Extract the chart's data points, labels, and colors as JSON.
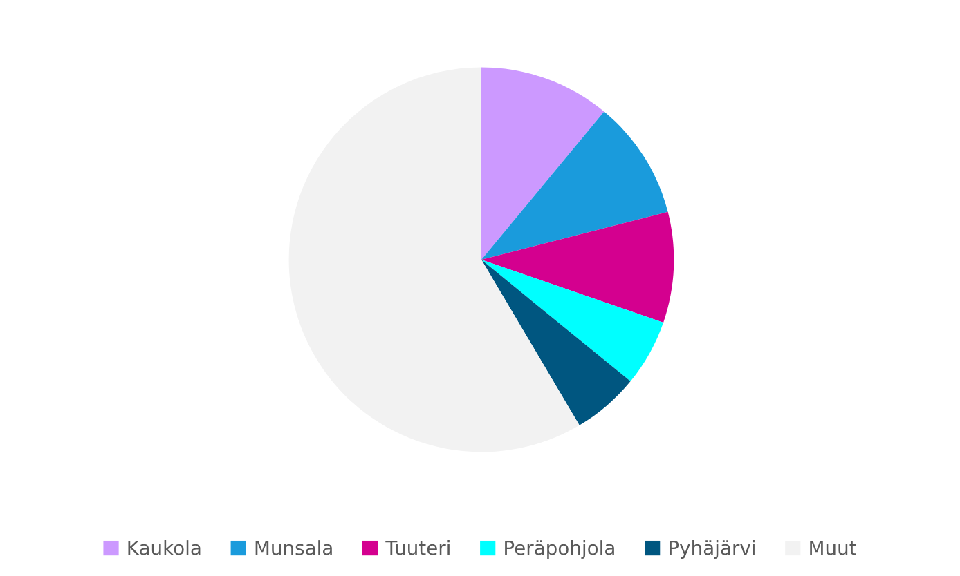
{
  "chart_data": {
    "type": "pie",
    "categories": [
      "Kaukola",
      "Munsala",
      "Tuuteri",
      "Peräpohjola",
      "Pyhäjärvi",
      "Muut"
    ],
    "values": [
      11,
      10,
      9.3,
      5.6,
      5.6,
      58.5
    ],
    "colors": [
      "#cc99ff",
      "#1a9bdc",
      "#d4008f",
      "#00ffff",
      "#005680",
      "#f2f2f2"
    ],
    "legend": "bottom"
  }
}
